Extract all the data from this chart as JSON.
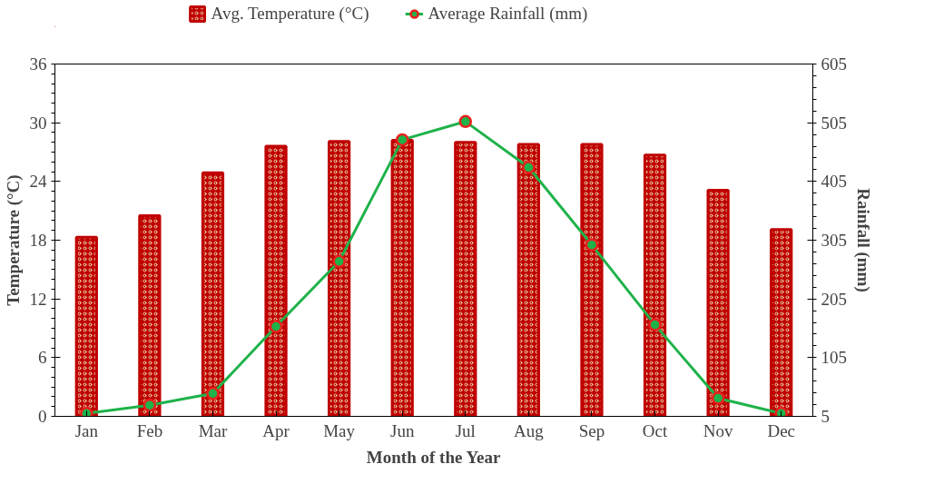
{
  "chart_data": {
    "type": "bar",
    "xlabel": "Month of the Year",
    "ylabel": "Temperature (°C)",
    "y2label": "Rainfall (mm)",
    "categories": [
      "Jan",
      "Feb",
      "Mar",
      "Apr",
      "May",
      "Jun",
      "Jul",
      "Aug",
      "Sep",
      "Oct",
      "Nov",
      "Dec"
    ],
    "series": [
      {
        "name": "Avg. Temperature (°C)",
        "color": "#c00000",
        "values": [
          18.3,
          20.5,
          24.9,
          27.6,
          28.1,
          28.2,
          28.0,
          27.8,
          27.8,
          26.7,
          23.1,
          19.1
        ]
      },
      {
        "name": "Average Rainfall (mm)",
        "type": "line",
        "axis": "y2",
        "color": "#1fb24a",
        "values": [
          10,
          24,
          44,
          158,
          269,
          476,
          507,
          429,
          297,
          161,
          36,
          10
        ]
      }
    ],
    "ylim": [
      0,
      36
    ],
    "yticks": [
      0,
      6,
      12,
      18,
      24,
      30,
      36
    ],
    "y2lim": [
      5,
      605
    ],
    "y2ticks": [
      5,
      105,
      205,
      305,
      405,
      505,
      605
    ],
    "grid": false,
    "legend": "top",
    "marker": "circle",
    "line_style": "solid"
  }
}
